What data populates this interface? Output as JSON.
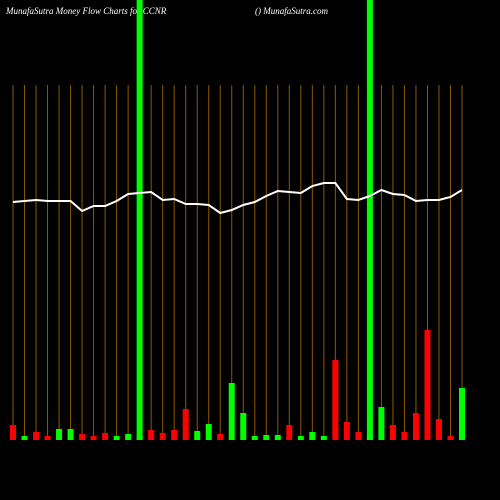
{
  "chart_data": {
    "type": "bar",
    "title": "MunafaSutra  Money Flow  Charts for CCNR",
    "subtitle": "() MunafaSutra.com",
    "categories": [
      null,
      null,
      null,
      null,
      null,
      null,
      null,
      null,
      null,
      null,
      null,
      null,
      null,
      null,
      null,
      null,
      null,
      null,
      null,
      null,
      null,
      null,
      null,
      null,
      null,
      null,
      null,
      null,
      null,
      null,
      null,
      null,
      null,
      null,
      null,
      null,
      null,
      null,
      null,
      null
    ],
    "series": [
      {
        "type": "bar",
        "values": [
          15,
          4,
          8,
          4,
          11,
          11,
          6,
          4,
          7,
          4,
          6,
          4,
          10,
          7,
          10,
          31,
          9,
          16,
          6,
          57,
          27,
          4,
          5,
          5,
          15,
          4,
          8,
          4,
          80,
          18,
          8,
          4,
          33,
          15,
          8,
          27,
          110,
          21,
          4,
          52
        ],
        "colors": [
          "#ff0000",
          "#00ff00",
          "#ff0000",
          "#ff0000",
          "#00ff00",
          "#00ff00",
          "#ff0000",
          "#ff0000",
          "#ff0000",
          "#00ff00",
          "#00ff00",
          "#00ff00",
          "#ff0000",
          "#ff0000",
          "#ff0000",
          "#ff0000",
          "#00ff00",
          "#00ff00",
          "#ff0000",
          "#00ff00",
          "#00ff00",
          "#00ff00",
          "#00ff00",
          "#00ff00",
          "#ff0000",
          "#00ff00",
          "#00ff00",
          "#00ff00",
          "#ff0000",
          "#ff0000",
          "#ff0000",
          "#00ff00",
          "#00ff00",
          "#ff0000",
          "#ff0000",
          "#ff0000",
          "#ff0000",
          "#ff0000",
          "#ff0000",
          "#00ff00"
        ]
      },
      {
        "type": "line",
        "color": "#ffffff",
        "values": [
          238,
          239,
          240,
          239,
          239,
          239,
          229,
          234,
          234,
          239,
          246,
          247,
          248,
          240,
          241,
          236,
          236,
          235,
          227,
          230,
          235,
          238,
          244,
          249,
          248,
          247,
          254,
          257,
          257,
          241,
          240,
          244,
          250,
          246,
          245,
          239,
          240,
          240,
          243,
          250
        ]
      }
    ],
    "highlights": [
      11,
      31
    ],
    "highlight_color": "#00ff00",
    "gridline_color": "#8b5a00"
  }
}
